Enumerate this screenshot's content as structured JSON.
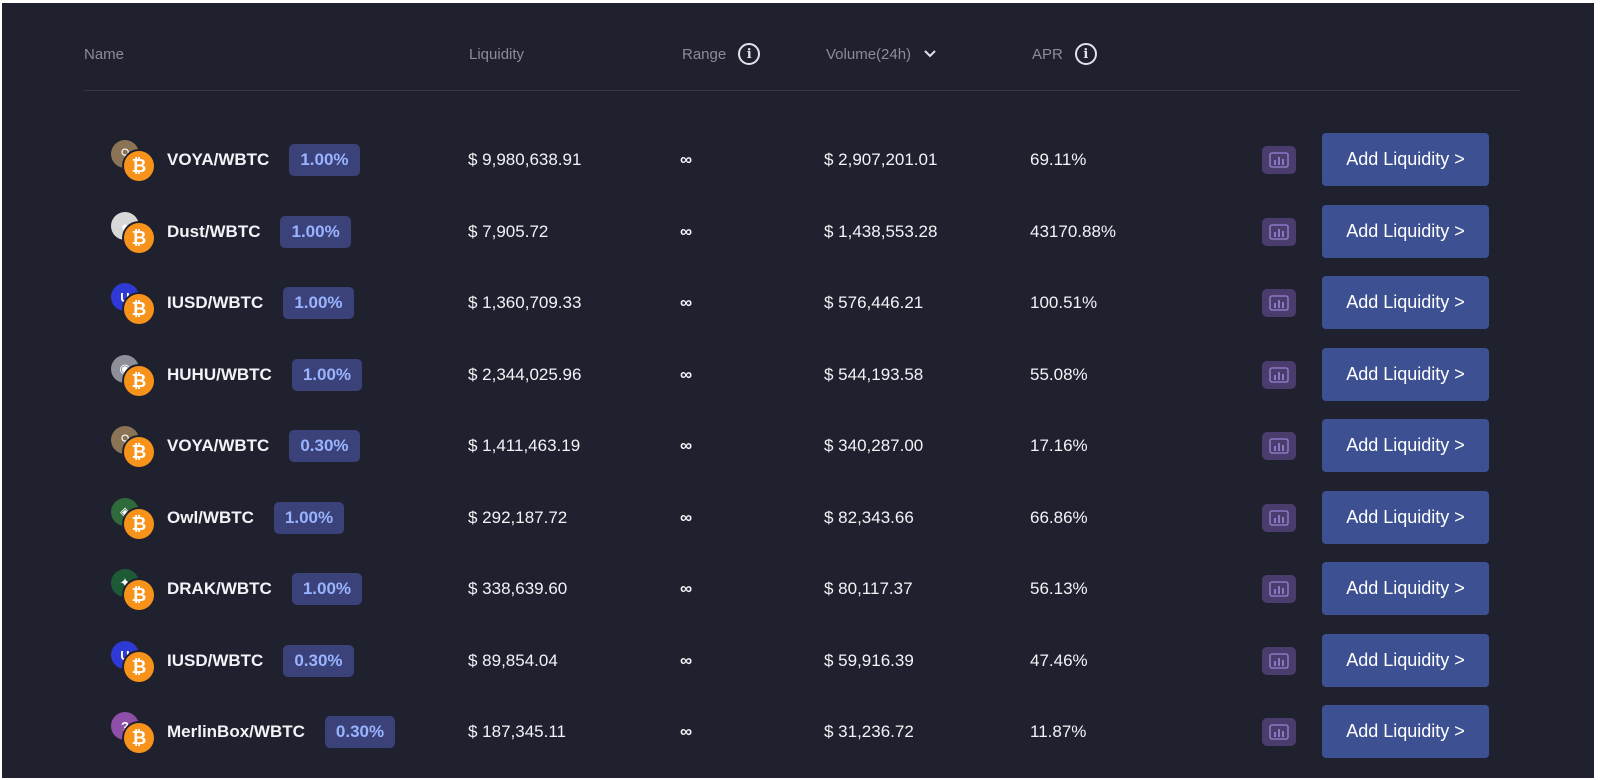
{
  "header": {
    "name": "Name",
    "liquidity": "Liquidity",
    "range": "Range",
    "volume": "Volume(24h)",
    "apr": "APR"
  },
  "colors": {
    "background": "#20212e",
    "fee_badge_bg": "#3a4279",
    "fee_badge_text": "#9ab3ff",
    "add_button": "#3d5192",
    "chart_button": "#4a3d6e",
    "wbtc": "#f7931a"
  },
  "rows": [
    {
      "pair": "VOYA/WBTC",
      "fee": "1.00%",
      "liquidity": "$ 9,980,638.91",
      "range": "∞",
      "volume": "$ 2,907,201.01",
      "apr": "69.11%",
      "add": "Add Liquidity >",
      "token_icon": "voya-token-icon",
      "token_color": "#8b7355",
      "token_glyph": "⚲"
    },
    {
      "pair": "Dust/WBTC",
      "fee": "1.00%",
      "liquidity": "$ 7,905.72",
      "range": "∞",
      "volume": "$ 1,438,553.28",
      "apr": "43170.88%",
      "add": "Add Liquidity >",
      "token_icon": "dust-token-icon",
      "token_color": "#d8d8d8",
      "token_glyph": "●"
    },
    {
      "pair": "IUSD/WBTC",
      "fee": "1.00%",
      "liquidity": "$ 1,360,709.33",
      "range": "∞",
      "volume": "$ 576,446.21",
      "apr": "100.51%",
      "add": "Add Liquidity >",
      "token_icon": "iusd-token-icon",
      "token_color": "#2f3ad6",
      "token_glyph": "U"
    },
    {
      "pair": "HUHU/WBTC",
      "fee": "1.00%",
      "liquidity": "$ 2,344,025.96",
      "range": "∞",
      "volume": "$ 544,193.58",
      "apr": "55.08%",
      "add": "Add Liquidity >",
      "token_icon": "huhu-token-icon",
      "token_color": "#8d8f99",
      "token_glyph": "◉"
    },
    {
      "pair": "VOYA/WBTC",
      "fee": "0.30%",
      "liquidity": "$ 1,411,463.19",
      "range": "∞",
      "volume": "$ 340,287.00",
      "apr": "17.16%",
      "add": "Add Liquidity >",
      "token_icon": "voya-token-icon",
      "token_color": "#8b7355",
      "token_glyph": "⚲"
    },
    {
      "pair": "Owl/WBTC",
      "fee": "1.00%",
      "liquidity": "$ 292,187.72",
      "range": "∞",
      "volume": "$ 82,343.66",
      "apr": "66.86%",
      "add": "Add Liquidity >",
      "token_icon": "owl-token-icon",
      "token_color": "#2f6b3a",
      "token_glyph": "◈"
    },
    {
      "pair": "DRAK/WBTC",
      "fee": "1.00%",
      "liquidity": "$ 338,639.60",
      "range": "∞",
      "volume": "$ 80,117.37",
      "apr": "56.13%",
      "add": "Add Liquidity >",
      "token_icon": "drak-token-icon",
      "token_color": "#1d5a36",
      "token_glyph": "✦"
    },
    {
      "pair": "IUSD/WBTC",
      "fee": "0.30%",
      "liquidity": "$ 89,854.04",
      "range": "∞",
      "volume": "$ 59,916.39",
      "apr": "47.46%",
      "add": "Add Liquidity >",
      "token_icon": "iusd-token-icon",
      "token_color": "#2f3ad6",
      "token_glyph": "U"
    },
    {
      "pair": "MerlinBox/WBTC",
      "fee": "0.30%",
      "liquidity": "$ 187,345.11",
      "range": "∞",
      "volume": "$ 31,236.72",
      "apr": "11.87%",
      "add": "Add Liquidity >",
      "token_icon": "merlinbox-token-icon",
      "token_color": "#8e4fa8",
      "token_glyph": "?"
    }
  ],
  "wbtc_glyph": "₿"
}
